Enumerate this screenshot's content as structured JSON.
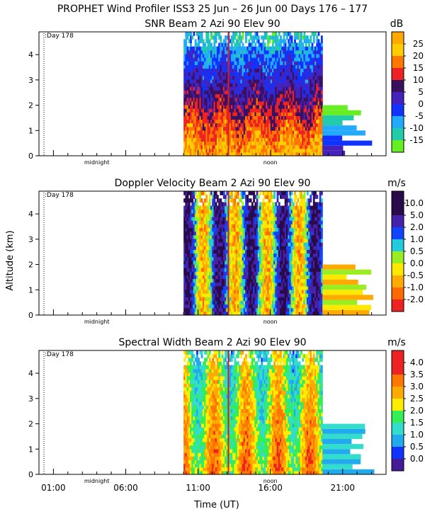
{
  "page_title": "PROPHET Wind Profiler ISS3  25 Jun – 26 Jun 00 Days 176 – 177",
  "colors": {
    "background": "#ffffff",
    "axis": "#000000",
    "missing": "#ffffff"
  },
  "shared": {
    "xlabel": "Time (UT)",
    "ylabel": "Altitude (km)",
    "y_ticks": [
      "0",
      "1",
      "2",
      "3",
      "4"
    ],
    "y_range_km": [
      0,
      4.9
    ],
    "x_range_hours": [
      0,
      24
    ],
    "bottom_tick_labels": [
      "01:00",
      "06:00",
      "11:00",
      "16:00",
      "21:00"
    ],
    "bottom_tick_hours": [
      1,
      6,
      11,
      16,
      21
    ],
    "midnight_label": "midnight",
    "midnight_hour": 4,
    "noon_label": "noon",
    "noon_hour": 16,
    "day_marker_label": ":Day 178",
    "data_start_hour": 10,
    "data_dense_end_hour": 19.6,
    "data_end_hour": 23.2
  },
  "chart_data": [
    {
      "type": "heatmap",
      "title": "SNR Beam 2 Azi  90 Elev 90",
      "units": "dB",
      "colorbar_labels": [
        "-15",
        "-10",
        "-5",
        "0",
        "5",
        "10",
        "15",
        "20",
        "25"
      ],
      "colorbar_colors": [
        "#66ee22",
        "#22ccaa",
        "#22aaff",
        "#1133ff",
        "#4422bb",
        "#3a1060",
        "#ee2222",
        "#ff7700",
        "#ffcc00",
        "#ffa800"
      ]
    },
    {
      "type": "heatmap",
      "title": "Doppler Velocity Beam 2 Azi  90 Elev 90",
      "units": "m/s",
      "colorbar_labels": [
        "-2.0",
        "-1.0",
        "-0.5",
        "0.0",
        "0.5",
        "1.0",
        "2.0",
        "5.0",
        "10.0"
      ],
      "colorbar_colors": [
        "#ee2222",
        "#ff6a00",
        "#ffaa00",
        "#ffe800",
        "#99ee22",
        "#22ccdd",
        "#1144ff",
        "#4422aa",
        "#2a0a4a",
        "#2a0a4a"
      ]
    },
    {
      "type": "heatmap",
      "title": "Spectral Width Beam 2 Azi  90 Elev 90",
      "units": "m/s",
      "colorbar_labels": [
        "0.0",
        "0.5",
        "1.0",
        "1.5",
        "2.0",
        "2.5",
        "3.0",
        "3.5",
        "4.0"
      ],
      "colorbar_colors": [
        "#441a99",
        "#1133ff",
        "#22aaee",
        "#33ddcc",
        "#33ee55",
        "#ffee00",
        "#ffaa00",
        "#ff7700",
        "#ee2222",
        "#ee2222"
      ]
    }
  ]
}
